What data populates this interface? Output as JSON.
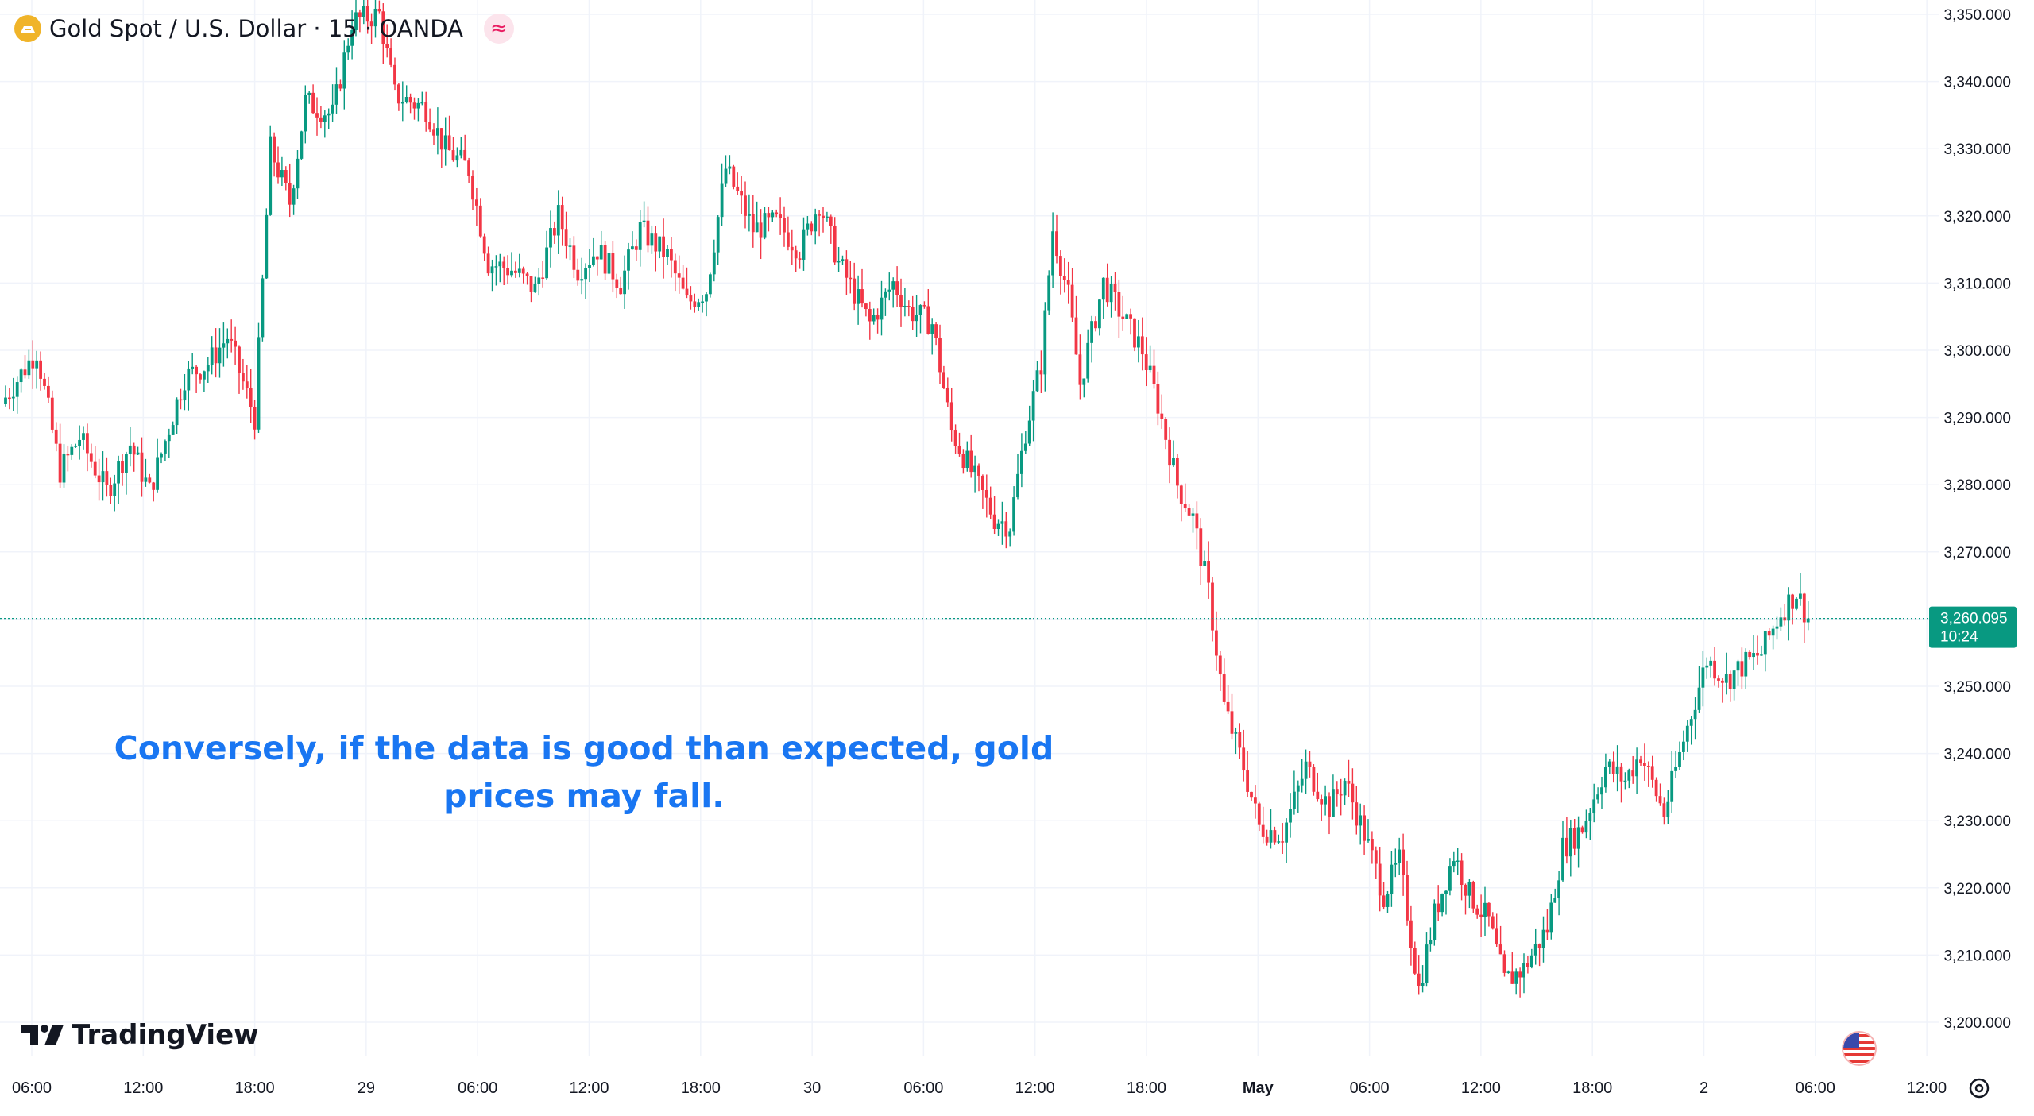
{
  "header": {
    "title": "Gold Spot / U.S. Dollar · 15 · OANDA",
    "symbol_icon": "gold-symbol-icon",
    "indicator_icon": "wave-approx-icon"
  },
  "annotation": {
    "line1": "Conversely, if the data is good than expected, gold",
    "line2": "prices may fall."
  },
  "branding": {
    "logo_text": "TradingView",
    "logo_icon": "tv-logo-icon"
  },
  "price_badge": {
    "price": "3,260.095",
    "countdown": "10:24",
    "color": "#089981"
  },
  "colors": {
    "up": "#089981",
    "down": "#f23645",
    "annotation": "#1976f2",
    "grid": "#f0f3fa"
  },
  "chart_data": {
    "type": "candlestick",
    "title": "Gold Spot / U.S. Dollar · 15 · OANDA",
    "interval": "15",
    "y_ticks": [
      "3,350.000",
      "3,340.000",
      "3,330.000",
      "3,320.000",
      "3,310.000",
      "3,300.000",
      "3,290.000",
      "3,280.000",
      "3,270.000",
      "3,260.000",
      "3,250.000",
      "3,240.000",
      "3,230.000",
      "3,220.000",
      "3,210.000",
      "3,200.000"
    ],
    "ylim": [
      3195.5,
      3351.5
    ],
    "x_ticks": [
      "06:00",
      "12:00",
      "18:00",
      "29",
      "06:00",
      "12:00",
      "18:00",
      "30",
      "06:00",
      "12:00",
      "18:00",
      "May",
      "06:00",
      "12:00",
      "18:00",
      "2",
      "06:00",
      "12:00"
    ],
    "x_tick_bold": [
      false,
      false,
      false,
      false,
      false,
      false,
      false,
      false,
      false,
      false,
      false,
      true,
      false,
      false,
      false,
      false,
      false,
      false
    ],
    "last_price": 3260.095,
    "close_path": [
      {
        "x": 0,
        "y": 3293
      },
      {
        "x": 8,
        "y": 3300
      },
      {
        "x": 14,
        "y": 3282
      },
      {
        "x": 19,
        "y": 3287
      },
      {
        "x": 26,
        "y": 3279
      },
      {
        "x": 32,
        "y": 3286
      },
      {
        "x": 37,
        "y": 3279
      },
      {
        "x": 46,
        "y": 3296
      },
      {
        "x": 52,
        "y": 3298
      },
      {
        "x": 57,
        "y": 3302
      },
      {
        "x": 64,
        "y": 3290
      },
      {
        "x": 68,
        "y": 3330
      },
      {
        "x": 73,
        "y": 3322
      },
      {
        "x": 77,
        "y": 3337
      },
      {
        "x": 84,
        "y": 3335
      },
      {
        "x": 89,
        "y": 3349
      },
      {
        "x": 96,
        "y": 3350
      },
      {
        "x": 100,
        "y": 3338
      },
      {
        "x": 108,
        "y": 3336
      },
      {
        "x": 113,
        "y": 3330
      },
      {
        "x": 119,
        "y": 3327
      },
      {
        "x": 124,
        "y": 3313
      },
      {
        "x": 130,
        "y": 3312
      },
      {
        "x": 136,
        "y": 3309
      },
      {
        "x": 142,
        "y": 3320
      },
      {
        "x": 147,
        "y": 3312
      },
      {
        "x": 152,
        "y": 3315
      },
      {
        "x": 158,
        "y": 3310
      },
      {
        "x": 163,
        "y": 3318
      },
      {
        "x": 170,
        "y": 3314
      },
      {
        "x": 175,
        "y": 3307
      },
      {
        "x": 180,
        "y": 3309
      },
      {
        "x": 185,
        "y": 3327
      },
      {
        "x": 192,
        "y": 3318
      },
      {
        "x": 198,
        "y": 3319
      },
      {
        "x": 204,
        "y": 3315
      },
      {
        "x": 209,
        "y": 3322
      },
      {
        "x": 214,
        "y": 3313
      },
      {
        "x": 222,
        "y": 3304
      },
      {
        "x": 228,
        "y": 3310
      },
      {
        "x": 232,
        "y": 3306
      },
      {
        "x": 238,
        "y": 3304
      },
      {
        "x": 243,
        "y": 3288
      },
      {
        "x": 248,
        "y": 3282
      },
      {
        "x": 254,
        "y": 3275
      },
      {
        "x": 258,
        "y": 3274
      },
      {
        "x": 262,
        "y": 3288
      },
      {
        "x": 266,
        "y": 3298
      },
      {
        "x": 269,
        "y": 3318
      },
      {
        "x": 273,
        "y": 3308
      },
      {
        "x": 276,
        "y": 3295
      },
      {
        "x": 282,
        "y": 3310
      },
      {
        "x": 287,
        "y": 3305
      },
      {
        "x": 292,
        "y": 3300
      },
      {
        "x": 296,
        "y": 3292
      },
      {
        "x": 301,
        "y": 3280
      },
      {
        "x": 305,
        "y": 3275
      },
      {
        "x": 309,
        "y": 3264
      },
      {
        "x": 313,
        "y": 3247
      },
      {
        "x": 318,
        "y": 3238
      },
      {
        "x": 322,
        "y": 3229
      },
      {
        "x": 328,
        "y": 3228
      },
      {
        "x": 334,
        "y": 3238
      },
      {
        "x": 340,
        "y": 3232
      },
      {
        "x": 344,
        "y": 3236
      },
      {
        "x": 349,
        "y": 3228
      },
      {
        "x": 354,
        "y": 3219
      },
      {
        "x": 358,
        "y": 3224
      },
      {
        "x": 363,
        "y": 3205
      },
      {
        "x": 367,
        "y": 3216
      },
      {
        "x": 372,
        "y": 3225
      },
      {
        "x": 376,
        "y": 3219
      },
      {
        "x": 381,
        "y": 3215
      },
      {
        "x": 385,
        "y": 3206
      },
      {
        "x": 390,
        "y": 3208
      },
      {
        "x": 396,
        "y": 3214
      },
      {
        "x": 400,
        "y": 3226
      },
      {
        "x": 405,
        "y": 3229
      },
      {
        "x": 411,
        "y": 3238
      },
      {
        "x": 416,
        "y": 3236
      },
      {
        "x": 420,
        "y": 3240
      },
      {
        "x": 426,
        "y": 3231
      },
      {
        "x": 431,
        "y": 3242
      },
      {
        "x": 437,
        "y": 3254
      },
      {
        "x": 442,
        "y": 3251
      },
      {
        "x": 446,
        "y": 3253
      },
      {
        "x": 451,
        "y": 3255
      },
      {
        "x": 456,
        "y": 3261
      },
      {
        "x": 460,
        "y": 3264
      },
      {
        "x": 463,
        "y": 3260
      }
    ]
  }
}
